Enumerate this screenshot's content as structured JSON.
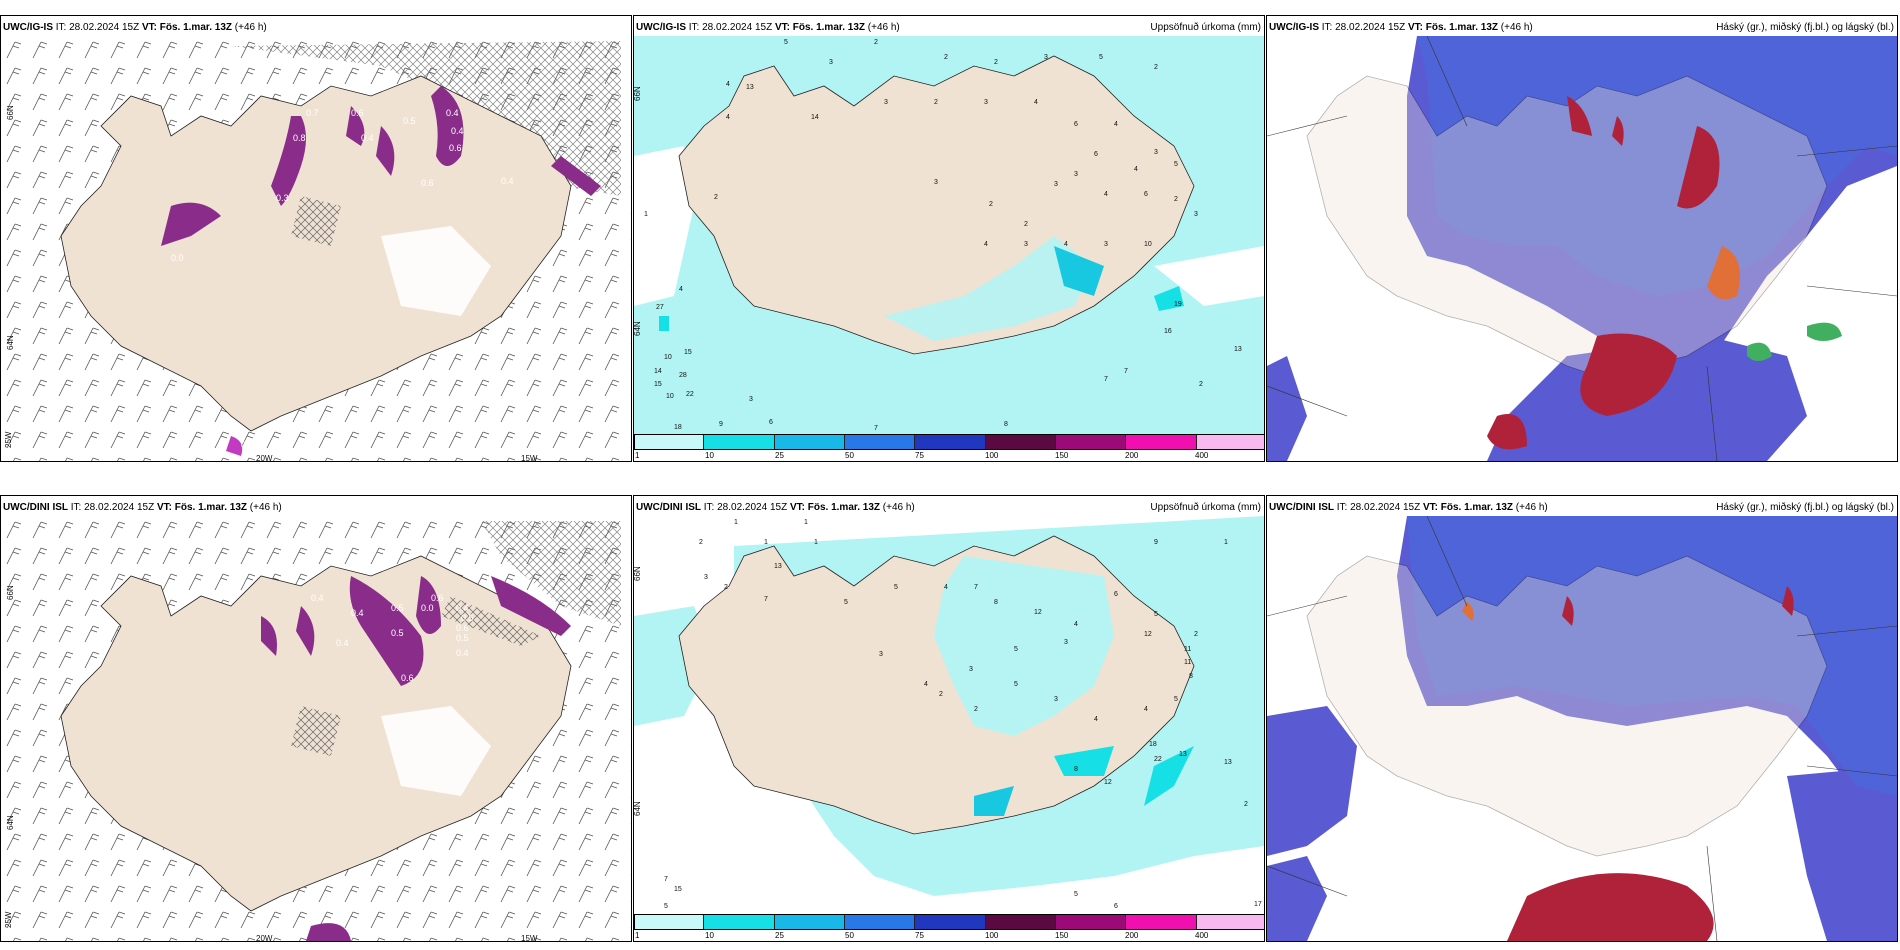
{
  "panels": [
    {
      "model": "UWC/IG-IS",
      "it_label": "IT:",
      "it_value": "28.02.2024 15Z",
      "vt_label": "VT:",
      "vt_value": "Fös. 1.mar. 13Z",
      "lead": "(+46 h)",
      "right_title": "",
      "labels": [
        "66N",
        "64N",
        "25W",
        "20W",
        "15W"
      ],
      "values": [
        "0.7",
        "0.8",
        "0.6",
        "0.4",
        "0.5",
        "0.3",
        "0.4",
        "0.4",
        "0.6",
        "0.6",
        "0.4",
        "0.0",
        "0.6"
      ]
    },
    {
      "model": "UWC/IG-IS",
      "it_label": "IT:",
      "it_value": "28.02.2024 15Z",
      "vt_label": "VT:",
      "vt_value": "Fös. 1.mar. 13Z",
      "lead": "(+46 h)",
      "right_title": "Uppsöfnuð úrkoma (mm)",
      "labels": [
        "66N",
        "64N"
      ],
      "values": [
        "5",
        "3",
        "2",
        "2",
        "2",
        "3",
        "5",
        "2",
        "4",
        "13",
        "4",
        "14",
        "3",
        "2",
        "3",
        "4",
        "6",
        "4",
        "3",
        "3",
        "4",
        "6",
        "2",
        "3",
        "10",
        "3",
        "4",
        "3",
        "4",
        "27",
        "15",
        "10",
        "14",
        "28",
        "15",
        "10",
        "22",
        "18",
        "9",
        "6",
        "3",
        "7",
        "8",
        "16",
        "19",
        "13",
        "7",
        "7",
        "2",
        "1",
        "2",
        "4",
        "3",
        "2",
        "2",
        "3",
        "6",
        "4",
        "5"
      ]
    },
    {
      "model": "UWC/IG-IS",
      "it_label": "IT:",
      "it_value": "28.02.2024 15Z",
      "vt_label": "VT:",
      "vt_value": "Fös. 1.mar. 13Z",
      "lead": "(+46 h)",
      "right_title": "Háský (gr.), miðský (fj.bl.) og lágský (bl.)",
      "labels": [],
      "values": []
    },
    {
      "model": "UWC/DINI ISL",
      "it_label": "IT:",
      "it_value": "28.02.2024 15Z",
      "vt_label": "VT:",
      "vt_value": "Fös. 1.mar. 13Z",
      "lead": "(+46 h)",
      "right_title": "",
      "labels": [
        "66N",
        "64N",
        "25W",
        "20W",
        "15W"
      ],
      "values": [
        "0.4",
        "0.5",
        "0.6",
        "0.4",
        "0.5",
        "0.6",
        "0.5",
        "0.4",
        "0.4",
        "0.6",
        "0.0",
        "0.5",
        "0.4"
      ]
    },
    {
      "model": "UWC/DINI ISL",
      "it_label": "IT:",
      "it_value": "28.02.2024 15Z",
      "vt_label": "VT:",
      "vt_value": "Fös. 1.mar. 13Z",
      "lead": "(+46 h)",
      "right_title": "Uppsöfnuð úrkoma (mm)",
      "labels": [
        "66N",
        "64N"
      ],
      "values": [
        "2",
        "1",
        "1",
        "1",
        "13",
        "3",
        "2",
        "7",
        "5",
        "5",
        "4",
        "7",
        "8",
        "12",
        "4",
        "6",
        "5",
        "2",
        "9",
        "1",
        "3",
        "4",
        "2",
        "5",
        "3",
        "4",
        "12",
        "11",
        "11",
        "8",
        "5",
        "4",
        "18",
        "22",
        "13",
        "12",
        "13",
        "8",
        "7",
        "15",
        "5",
        "5",
        "6",
        "17",
        "2",
        "1",
        "3",
        "5",
        "3",
        "2"
      ]
    },
    {
      "model": "UWC/DINI ISL",
      "it_label": "IT:",
      "it_value": "28.02.2024 15Z",
      "vt_label": "VT:",
      "vt_value": "Fös. 1.mar. 13Z",
      "lead": "(+46 h)",
      "right_title": "Háský (gr.), miðský (fj.bl.) og lágský (bl.)",
      "labels": [],
      "values": []
    }
  ],
  "colorbar": {
    "ticks": [
      "1",
      "10",
      "25",
      "50",
      "75",
      "100",
      "150",
      "200",
      "400"
    ],
    "colors": [
      "#c8f8f8",
      "#16e0e6",
      "#18b8e8",
      "#2878e8",
      "#2038c0",
      "#5a0a40",
      "#9c0a78",
      "#f010b0",
      "#f8b8f0"
    ]
  },
  "colors": {
    "land": "#efe2d2",
    "sea_precip": "#b2f4f4",
    "precip_purple": "#8a2c8a",
    "cloud_low": "#5a5ad2",
    "cloud_mid": "#3c78e6",
    "cloud_high": "#b0223a"
  }
}
